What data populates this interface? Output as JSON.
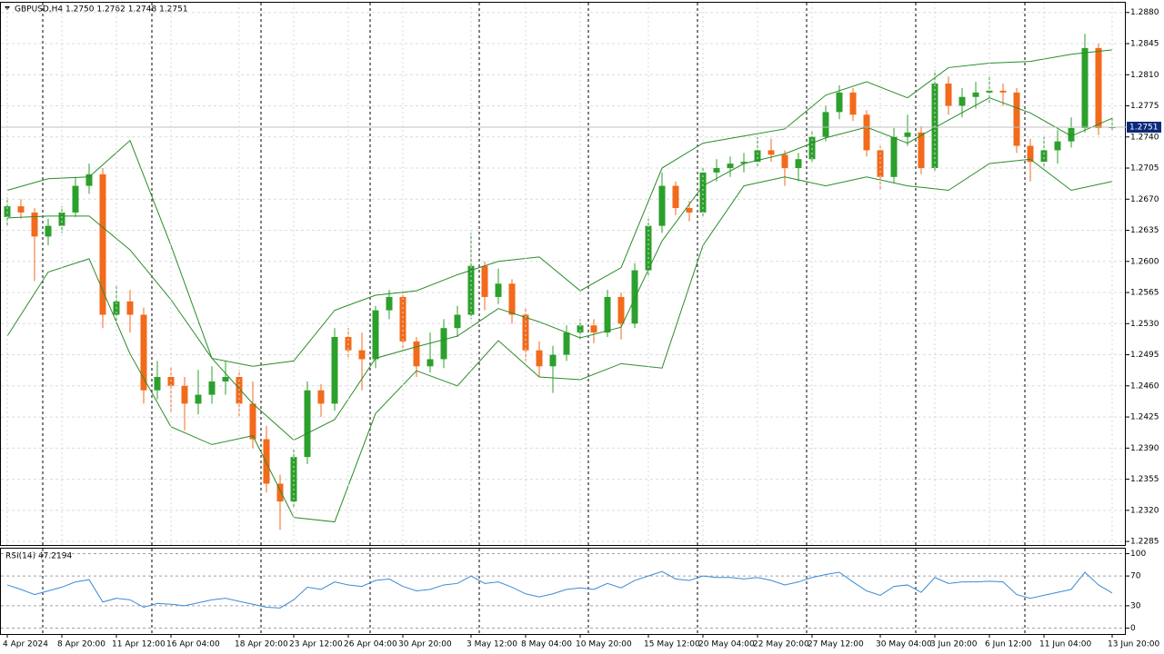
{
  "chart_data": [
    {
      "type": "candlestick",
      "header": "GBPUSD,H4  1.2750 1.2762 1.2748 1.2751",
      "up_color": "#2ca02c",
      "down_color": "#f26a1b",
      "grid": true,
      "categories": [
        "4 Apr 2024",
        null,
        null,
        null,
        "8 Apr 20:00",
        null,
        null,
        null,
        "11 Apr 12:00",
        null,
        null,
        null,
        "16 Apr 04:00",
        null,
        null,
        null,
        null,
        "18 Apr 20:00",
        null,
        null,
        null,
        "23 Apr 12:00",
        null,
        null,
        null,
        "26 Apr 04:00",
        null,
        null,
        null,
        "30 Apr 20:00",
        null,
        null,
        null,
        null,
        "3 May 12:00",
        null,
        null,
        null,
        "8 May 04:00",
        null,
        null,
        null,
        "10 May 20:00",
        null,
        null,
        null,
        null,
        "15 May 12:00",
        null,
        null,
        null,
        "20 May 04:00",
        null,
        null,
        null,
        "22 May 20:00",
        null,
        null,
        null,
        "27 May 12:00",
        null,
        null,
        null,
        null,
        "30 May 04:00",
        null,
        null,
        null,
        "3 Jun 20:00",
        null,
        null,
        null,
        "6 Jun 12:00",
        null,
        null,
        null,
        "11 Jun 04:00",
        null,
        null,
        null,
        null,
        "13 Jun 20:00"
      ],
      "ohlc": [
        [
          1.265,
          1.2672,
          1.264,
          1.2662
        ],
        [
          1.2662,
          1.267,
          1.2648,
          1.2655
        ],
        [
          1.2655,
          1.266,
          1.2578,
          1.2628
        ],
        [
          1.2628,
          1.2648,
          1.2618,
          1.264
        ],
        [
          1.264,
          1.2662,
          1.2632,
          1.2655
        ],
        [
          1.2655,
          1.2695,
          1.265,
          1.2685
        ],
        [
          1.2685,
          1.271,
          1.2676,
          1.2698
        ],
        [
          1.2698,
          1.2705,
          1.2525,
          1.254
        ],
        [
          1.254,
          1.2572,
          1.253,
          1.2555
        ],
        [
          1.2555,
          1.2568,
          1.252,
          1.254
        ],
        [
          1.254,
          1.2548,
          1.244,
          1.2455
        ],
        [
          1.2455,
          1.2488,
          1.2445,
          1.247
        ],
        [
          1.247,
          1.2482,
          1.243,
          1.246
        ],
        [
          1.246,
          1.247,
          1.241,
          1.244
        ],
        [
          1.244,
          1.2478,
          1.2428,
          1.245
        ],
        [
          1.245,
          1.2482,
          1.244,
          1.2465
        ],
        [
          1.2465,
          1.2488,
          1.245,
          1.247
        ],
        [
          1.247,
          1.2478,
          1.2425,
          1.244
        ],
        [
          1.244,
          1.2465,
          1.239,
          1.24
        ],
        [
          1.24,
          1.2415,
          1.234,
          1.235
        ],
        [
          1.235,
          1.236,
          1.2298,
          1.233
        ],
        [
          1.233,
          1.239,
          1.2322,
          1.238
        ],
        [
          1.238,
          1.2465,
          1.2372,
          1.2455
        ],
        [
          1.2455,
          1.2462,
          1.2425,
          1.244
        ],
        [
          1.244,
          1.2525,
          1.2432,
          1.2515
        ],
        [
          1.2515,
          1.2525,
          1.249,
          1.25
        ],
        [
          1.25,
          1.252,
          1.2455,
          1.249
        ],
        [
          1.249,
          1.255,
          1.248,
          1.2545
        ],
        [
          1.2545,
          1.2568,
          1.2535,
          1.256
        ],
        [
          1.256,
          1.2565,
          1.25,
          1.251
        ],
        [
          1.251,
          1.2515,
          1.247,
          1.2482
        ],
        [
          1.2482,
          1.252,
          1.2475,
          1.249
        ],
        [
          1.249,
          1.2535,
          1.248,
          1.2525
        ],
        [
          1.2525,
          1.255,
          1.2515,
          1.254
        ],
        [
          1.254,
          1.2632,
          1.2535,
          1.2595
        ],
        [
          1.2595,
          1.26,
          1.2545,
          1.256
        ],
        [
          1.256,
          1.2592,
          1.2552,
          1.2575
        ],
        [
          1.2575,
          1.258,
          1.253,
          1.254
        ],
        [
          1.254,
          1.2548,
          1.2488,
          1.25
        ],
        [
          1.25,
          1.251,
          1.247,
          1.2482
        ],
        [
          1.2482,
          1.2505,
          1.2452,
          1.2495
        ],
        [
          1.2495,
          1.2528,
          1.2488,
          1.252
        ],
        [
          1.252,
          1.2535,
          1.2512,
          1.2528
        ],
        [
          1.2528,
          1.2535,
          1.2508,
          1.252
        ],
        [
          1.252,
          1.2568,
          1.2515,
          1.256
        ],
        [
          1.256,
          1.2565,
          1.2512,
          1.253
        ],
        [
          1.253,
          1.2598,
          1.2525,
          1.259
        ],
        [
          1.259,
          1.2648,
          1.2582,
          1.264
        ],
        [
          1.264,
          1.27,
          1.2632,
          1.2685
        ],
        [
          1.2685,
          1.269,
          1.2652,
          1.266
        ],
        [
          1.266,
          1.2668,
          1.2645,
          1.2655
        ],
        [
          1.2655,
          1.2705,
          1.265,
          1.27
        ],
        [
          1.27,
          1.2715,
          1.269,
          1.2705
        ],
        [
          1.2705,
          1.2718,
          1.2695,
          1.271
        ],
        [
          1.271,
          1.2722,
          1.27,
          1.2712
        ],
        [
          1.2712,
          1.274,
          1.2705,
          1.2725
        ],
        [
          1.2725,
          1.2738,
          1.2712,
          1.272
        ],
        [
          1.272,
          1.2725,
          1.2685,
          1.2705
        ],
        [
          1.2705,
          1.2722,
          1.269,
          1.2715
        ],
        [
          1.2715,
          1.2748,
          1.271,
          1.274
        ],
        [
          1.274,
          1.2775,
          1.2735,
          1.2768
        ],
        [
          1.2768,
          1.2798,
          1.276,
          1.279
        ],
        [
          1.279,
          1.2795,
          1.2758,
          1.2765
        ],
        [
          1.2765,
          1.277,
          1.2718,
          1.2725
        ],
        [
          1.2725,
          1.273,
          1.268,
          1.2695
        ],
        [
          1.2695,
          1.275,
          1.2688,
          1.274
        ],
        [
          1.274,
          1.2765,
          1.273,
          1.2745
        ],
        [
          1.2745,
          1.2752,
          1.2698,
          1.2705
        ],
        [
          1.2705,
          1.2815,
          1.27,
          1.28
        ],
        [
          1.28,
          1.2808,
          1.2765,
          1.2775
        ],
        [
          1.2775,
          1.2795,
          1.2762,
          1.2785
        ],
        [
          1.2785,
          1.2802,
          1.2772,
          1.279
        ],
        [
          1.279,
          1.2808,
          1.2778,
          1.2792
        ],
        [
          1.2792,
          1.28,
          1.2775,
          1.279
        ],
        [
          1.279,
          1.2795,
          1.2722,
          1.273
        ],
        [
          1.273,
          1.2738,
          1.269,
          1.2712
        ],
        [
          1.2712,
          1.274,
          1.2705,
          1.2725
        ],
        [
          1.2725,
          1.2748,
          1.271,
          1.2735
        ],
        [
          1.2735,
          1.2762,
          1.2728,
          1.275
        ],
        [
          1.275,
          1.2856,
          1.2745,
          1.284
        ],
        [
          1.284,
          1.2845,
          1.2742,
          1.275
        ],
        [
          1.275,
          1.2762,
          1.2748,
          1.2751
        ]
      ],
      "series": [
        {
          "color": "#2a8c2a",
          "x": [
            0,
            3,
            6,
            9,
            12,
            15,
            18,
            21,
            24,
            27,
            30,
            33,
            36,
            39,
            42,
            45,
            48,
            51,
            54,
            57,
            60,
            63,
            66,
            69,
            72,
            75,
            78,
            81
          ],
          "values": [
            1.268,
            1.2693,
            1.2695,
            1.2736,
            1.2618,
            1.2491,
            1.2482,
            1.2488,
            1.2545,
            1.2562,
            1.2567,
            1.2585,
            1.26,
            1.2605,
            1.2567,
            1.2593,
            1.2705,
            1.2733,
            1.2741,
            1.2749,
            1.2787,
            1.2802,
            1.2784,
            1.2818,
            1.2823,
            1.2825,
            1.2833,
            1.2838
          ]
        },
        {
          "color": "#2a8c2a",
          "x": [
            0,
            3,
            6,
            9,
            12,
            15,
            18,
            21,
            24,
            27,
            30,
            33,
            36,
            39,
            42,
            45,
            48,
            51,
            54,
            57,
            60,
            63,
            66,
            69,
            72,
            75,
            78,
            81
          ],
          "values": [
            1.2649,
            1.2651,
            1.2651,
            1.2613,
            1.2557,
            1.2491,
            1.244,
            1.2399,
            1.2422,
            1.2491,
            1.2504,
            1.2516,
            1.2547,
            1.2532,
            1.2514,
            1.2526,
            1.2623,
            1.2685,
            1.271,
            1.2721,
            1.2739,
            1.2751,
            1.2733,
            1.2759,
            1.2784,
            1.2767,
            1.2741,
            1.2761
          ]
        },
        {
          "color": "#2a8c2a",
          "x": [
            0,
            3,
            6,
            9,
            12,
            15,
            18,
            21,
            24,
            27,
            30,
            33,
            36,
            39,
            42,
            45,
            48,
            51,
            54,
            57,
            60,
            63,
            66,
            69,
            72,
            75,
            78,
            81
          ],
          "values": [
            1.2516,
            1.2588,
            1.2603,
            1.2496,
            1.2414,
            1.2394,
            1.2404,
            1.2312,
            1.2307,
            1.2429,
            1.2477,
            1.246,
            1.2511,
            1.247,
            1.2467,
            1.2485,
            1.248,
            1.2618,
            1.2685,
            1.2695,
            1.2685,
            1.2695,
            1.2685,
            1.268,
            1.271,
            1.2715,
            1.268,
            1.269
          ]
        }
      ],
      "ylim": [
        1.2281,
        1.2892
      ],
      "yticks": [
        {
          "value": 1.288,
          "label": "1.2880"
        },
        1.2845,
        {
          "value": 1.281,
          "label": "1.2810"
        },
        1.2775,
        {
          "value": 1.274,
          "label": "1.2740"
        },
        1.2705,
        {
          "value": 1.267,
          "label": "1.2670"
        },
        1.2635,
        {
          "value": 1.26,
          "label": "1.2600"
        },
        1.2565,
        {
          "value": 1.253,
          "label": "1.2530"
        },
        1.2495,
        {
          "value": 1.246,
          "label": "1.2460"
        },
        1.2425,
        {
          "value": 1.239,
          "label": "1.2390"
        },
        1.2355,
        {
          "value": 1.232,
          "label": "1.2320"
        },
        1.2285
      ]
    },
    {
      "type": "line",
      "header": "RSI(14) 47.2194",
      "color": "#3a8ad6",
      "values": [
        58,
        52,
        45,
        50,
        55,
        62,
        65,
        35,
        40,
        38,
        28,
        33,
        32,
        30,
        34,
        38,
        40,
        36,
        32,
        28,
        27,
        38,
        55,
        52,
        62,
        58,
        56,
        64,
        66,
        56,
        50,
        52,
        58,
        60,
        70,
        60,
        62,
        55,
        46,
        42,
        46,
        52,
        54,
        52,
        60,
        54,
        64,
        70,
        76,
        66,
        64,
        70,
        68,
        68,
        66,
        68,
        64,
        58,
        62,
        68,
        72,
        75,
        62,
        50,
        44,
        56,
        58,
        48,
        68,
        60,
        62,
        62,
        63,
        62,
        45,
        40,
        44,
        48,
        52,
        75,
        58,
        47.2194
      ],
      "ylim": [
        -8,
        108
      ],
      "yticks": [
        100,
        70,
        30,
        0
      ]
    }
  ]
}
